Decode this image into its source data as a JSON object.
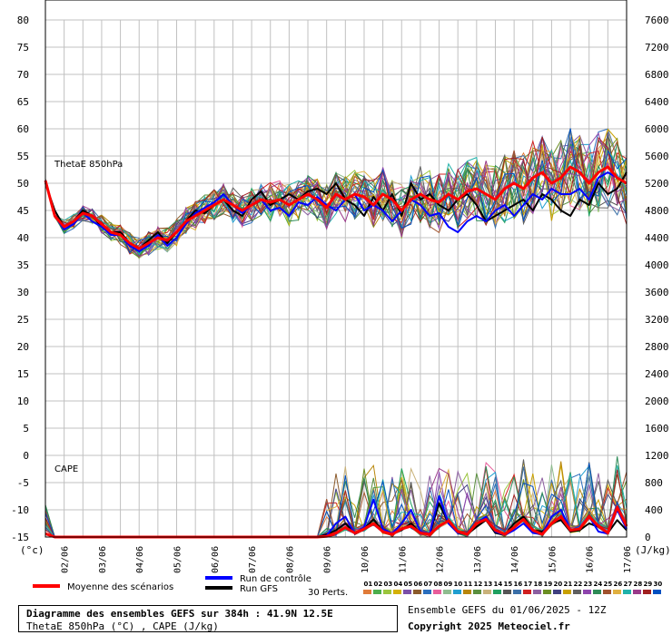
{
  "chart_data": {
    "type": "line",
    "title": "Diagramme des ensembles GEFS sur 384h : 41.9N 12.5E",
    "subtitle": "ThetaE 850hPa (°C) , CAPE (J/kg)",
    "panels": {
      "thetae": {
        "label": "ThetaE 850hPa"
      },
      "cape": {
        "label": "CAPE"
      }
    },
    "left_axis": {
      "unit": "(°c)",
      "ylim": [
        -15,
        80
      ],
      "ticks": [
        "80",
        "75",
        "70",
        "65",
        "60",
        "55",
        "50",
        "45",
        "40",
        "35",
        "30",
        "25",
        "20",
        "15",
        "10",
        "5",
        "0",
        "-5",
        "-10",
        "-15"
      ]
    },
    "right_axis": {
      "unit": "(J/kg)",
      "ylim": [
        0,
        7600
      ],
      "ticks": [
        "7600",
        "7200",
        "6800",
        "6400",
        "6000",
        "5600",
        "5200",
        "4800",
        "4400",
        "4000",
        "3600",
        "3200",
        "2800",
        "2400",
        "2000",
        "1600",
        "1200",
        "800",
        "400",
        "0"
      ]
    },
    "x_ticks": [
      "02/06",
      "03/06",
      "04/06",
      "05/06",
      "06/06",
      "07/06",
      "08/06",
      "09/06",
      "10/06",
      "11/06",
      "12/06",
      "13/06",
      "14/06",
      "15/06",
      "16/06",
      "17/06"
    ],
    "x_step_hours": 6,
    "thetae_mean": [
      50.5,
      44,
      42,
      43,
      44.5,
      44,
      42.5,
      41,
      40.5,
      39,
      38,
      39,
      40,
      39.5,
      41,
      43,
      44,
      45,
      46,
      47,
      46,
      45,
      46,
      47,
      46.5,
      47,
      46,
      47,
      48,
      47,
      45.5,
      48,
      47,
      48,
      47.5,
      46,
      48,
      47,
      45,
      47,
      48,
      47,
      46.5,
      48,
      47,
      48.5,
      49,
      48,
      47,
      49,
      50,
      49,
      51,
      52,
      50,
      51,
      53,
      52,
      50,
      52,
      53,
      51,
      50
    ],
    "thetae_control": [
      50.5,
      44,
      41.5,
      42.5,
      44.5,
      43,
      42,
      40.5,
      40.5,
      38.5,
      37.5,
      38.5,
      40.5,
      38.5,
      40,
      42.5,
      44.5,
      45.5,
      46.5,
      48,
      46,
      44.5,
      46,
      47,
      45,
      45.5,
      44,
      46.5,
      46,
      47.5,
      46,
      45,
      47,
      48,
      45,
      46,
      45,
      43,
      45,
      47,
      46,
      44,
      44.5,
      42,
      41,
      43,
      44,
      43,
      45,
      46,
      44,
      46,
      48,
      47,
      49,
      48,
      48,
      49,
      47,
      51,
      52,
      51,
      50
    ],
    "thetae_gfs": [
      50,
      45,
      42,
      43,
      45,
      44,
      42,
      41,
      41,
      39,
      38,
      39.5,
      41,
      39,
      41,
      43,
      45,
      44.5,
      46,
      47,
      45,
      44,
      47,
      48.5,
      46,
      47,
      48,
      47,
      48.5,
      49,
      48,
      50,
      47,
      46,
      44,
      47.5,
      45,
      48,
      44,
      50,
      47,
      48,
      46,
      45,
      47,
      48,
      46,
      43,
      44,
      45,
      46,
      47,
      45,
      48,
      47,
      45,
      44,
      47,
      46,
      50,
      48,
      49,
      52
    ],
    "cape_mean": [
      50,
      0,
      0,
      0,
      0,
      0,
      0,
      0,
      0,
      0,
      0,
      0,
      0,
      0,
      0,
      0,
      0,
      0,
      0,
      0,
      0,
      0,
      0,
      0,
      0,
      0,
      0,
      0,
      0,
      0,
      10,
      60,
      140,
      60,
      120,
      200,
      80,
      40,
      120,
      160,
      60,
      40,
      160,
      240,
      80,
      40,
      200,
      260,
      100,
      40,
      140,
      260,
      100,
      40,
      200,
      300,
      100,
      120,
      300,
      160,
      60,
      440,
      160
    ],
    "cape_control": [
      50,
      0,
      0,
      0,
      0,
      0,
      0,
      0,
      0,
      0,
      0,
      0,
      0,
      0,
      0,
      0,
      0,
      0,
      0,
      0,
      0,
      0,
      0,
      0,
      0,
      0,
      0,
      0,
      0,
      0,
      20,
      200,
      300,
      50,
      150,
      550,
      120,
      50,
      200,
      400,
      80,
      50,
      600,
      200,
      60,
      50,
      200,
      300,
      80,
      30,
      100,
      200,
      60,
      40,
      300,
      400,
      100,
      120,
      300,
      80,
      50,
      400,
      120
    ],
    "cape_gfs": [
      50,
      0,
      0,
      0,
      0,
      0,
      0,
      0,
      0,
      0,
      0,
      0,
      0,
      0,
      0,
      0,
      0,
      0,
      0,
      0,
      0,
      0,
      0,
      0,
      0,
      0,
      0,
      0,
      0,
      0,
      40,
      100,
      200,
      60,
      120,
      260,
      80,
      40,
      100,
      200,
      60,
      40,
      500,
      200,
      60,
      40,
      150,
      250,
      60,
      30,
      200,
      300,
      100,
      80,
      200,
      250,
      80,
      100,
      200,
      150,
      60,
      250,
      100
    ],
    "legend": {
      "mean": "Moyenne des scénarios",
      "control": "Run de contrôle",
      "gfs": "Run GFS",
      "perts": "30 Perts."
    },
    "perturbation_ids": [
      "01",
      "02",
      "03",
      "04",
      "05",
      "06",
      "07",
      "08",
      "09",
      "10",
      "11",
      "12",
      "13",
      "14",
      "15",
      "16",
      "17",
      "18",
      "19",
      "20",
      "21",
      "22",
      "23",
      "24",
      "25",
      "26",
      "27",
      "28",
      "29",
      "30"
    ],
    "perturbation_colors": [
      "#e07b39",
      "#4cae4c",
      "#9bc53d",
      "#d4b106",
      "#7b4fa8",
      "#8b5a2b",
      "#2a6ebd",
      "#e85d9b",
      "#8fbc8f",
      "#1f9ed0",
      "#b8860b",
      "#5a8f3e",
      "#c9b27a",
      "#20a060",
      "#555555",
      "#3a6fa8",
      "#d02020",
      "#8c5fa0",
      "#6b8e23",
      "#404080",
      "#c8a000",
      "#606060",
      "#8e44ad",
      "#2e8b57",
      "#a0522d",
      "#e0b040",
      "#20b2aa",
      "#9a3a8a",
      "#a02020",
      "#0050c0"
    ],
    "series_colors": {
      "mean": "#ff0000",
      "control": "#0000ff",
      "gfs": "#000000"
    }
  },
  "footer": {
    "title": "Diagramme des ensembles GEFS sur 384h : 41.9N 12.5E",
    "subtitle": "ThetaE 850hPa (°C) , CAPE (J/kg)",
    "run": "Ensemble GEFS du 01/06/2025 - 12Z",
    "copyright": "Copyright 2025 Meteociel.fr"
  }
}
